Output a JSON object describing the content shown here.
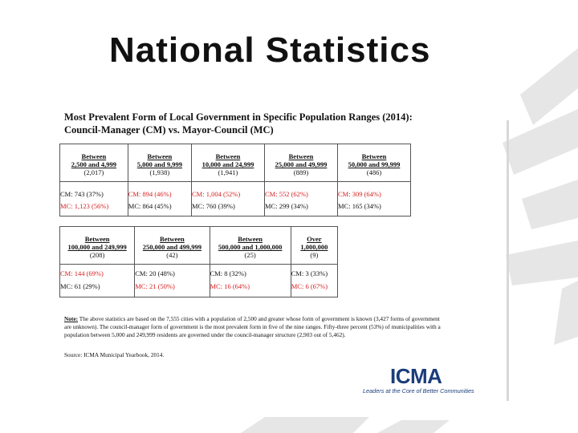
{
  "slide": {
    "title": "National Statistics"
  },
  "figure": {
    "heading_line1": "Most Prevalent Form of Local Government in Specific Population Ranges (2014):",
    "heading_line2": "Council-Manager (CM) vs. Mayor-Council (MC)",
    "table1": {
      "columns": [
        {
          "line1": "Between",
          "line2": "2,500 and 4,999",
          "count": "(2,017)",
          "cm": "CM: 743 (37%)",
          "mc": "MC: 1,123 (56%)",
          "cm_highlight": false,
          "mc_highlight": true
        },
        {
          "line1": "Between",
          "line2": "5,000 and 9,999",
          "count": "(1,938)",
          "cm": "CM: 894 (46%)",
          "mc": "MC: 864 (45%)",
          "cm_highlight": true,
          "mc_highlight": false
        },
        {
          "line1": "Between",
          "line2": "10,000 and 24,999",
          "count": "(1,941)",
          "cm": "CM: 1,004 (52%)",
          "mc": "MC: 760 (39%)",
          "cm_highlight": true,
          "mc_highlight": false
        },
        {
          "line1": "Between",
          "line2": "25,000 and 49,999",
          "count": "(889)",
          "cm": "CM: 552 (62%)",
          "mc": "MC: 299 (34%)",
          "cm_highlight": true,
          "mc_highlight": false
        },
        {
          "line1": "Between",
          "line2": "50,000 and 99,999",
          "count": "(486)",
          "cm": "CM: 309 (64%)",
          "mc": "MC: 165 (34%)",
          "cm_highlight": true,
          "mc_highlight": false
        }
      ]
    },
    "table2": {
      "columns": [
        {
          "line1": "Between",
          "line2": "100,000 and 249,999",
          "count": "(208)",
          "cm": "CM:  144 (69%)",
          "mc": "MC:  61 (29%)",
          "cm_highlight": true,
          "mc_highlight": false
        },
        {
          "line1": "Between",
          "line2": "250,000 and 499,999",
          "count": "(42)",
          "cm": "CM:  20 (48%)",
          "mc": "MC:  21 (50%)",
          "cm_highlight": false,
          "mc_highlight": true
        },
        {
          "line1": "Between",
          "line2": "500,000 and 1,000,000",
          "count": "(25)",
          "cm": "CM:  8 (32%)",
          "mc": "MC:  16 (64%)",
          "cm_highlight": false,
          "mc_highlight": true
        },
        {
          "line1": "Over",
          "line2": "1,000,000",
          "count": "(9)",
          "cm": "CM: 3 (33%)",
          "mc": "MC: 6 (67%)",
          "cm_highlight": false,
          "mc_highlight": true
        }
      ]
    },
    "note_label": "Note:",
    "note_text": "The above statistics are based on the 7,555 cities with a population of 2,500 and greater whose form of government is known (3,427 forms of government are unknown).  The council-manager form of government is the most prevalent form in five of the nine ranges.  Fifty-three percent (53%) of municipalities with a population between 5,000 and 249,999 residents are governed under the council-manager structure (2,903 out of 5,462).",
    "source": "Source: ICMA Municipal Yearbook, 2014."
  },
  "logo": {
    "wordmark": "ICMA",
    "tagline": "Leaders at the Core of Better Communities"
  },
  "colors": {
    "highlight": "#d62020",
    "logo_blue": "#1a3d7a",
    "decor_grey": "#e6e6e6"
  }
}
